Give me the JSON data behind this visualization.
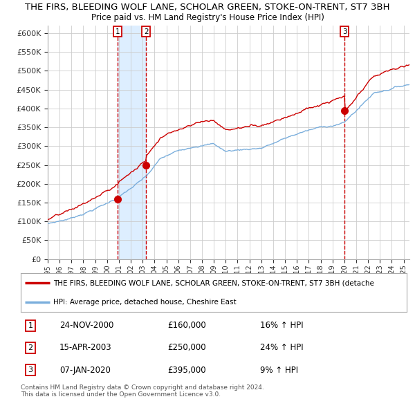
{
  "title": "THE FIRS, BLEEDING WOLF LANE, SCHOLAR GREEN, STOKE-ON-TRENT, ST7 3BH",
  "subtitle": "Price paid vs. HM Land Registry's House Price Index (HPI)",
  "ylim": [
    0,
    620000
  ],
  "yticks": [
    0,
    50000,
    100000,
    150000,
    200000,
    250000,
    300000,
    350000,
    400000,
    450000,
    500000,
    550000,
    600000
  ],
  "ytick_labels": [
    "£0",
    "£50K",
    "£100K",
    "£150K",
    "£200K",
    "£250K",
    "£300K",
    "£350K",
    "£400K",
    "£450K",
    "£500K",
    "£550K",
    "£600K"
  ],
  "sale_prices": [
    160000,
    250000,
    395000
  ],
  "sale_labels": [
    "1",
    "2",
    "3"
  ],
  "red_line_color": "#cc0000",
  "blue_line_color": "#7aaedc",
  "shade_color": "#ddeeff",
  "vline_color": "#cc0000",
  "grid_color": "#cccccc",
  "background_color": "#ffffff",
  "legend_line1": "THE FIRS, BLEEDING WOLF LANE, SCHOLAR GREEN, STOKE-ON-TRENT, ST7 3BH (detache",
  "legend_line2": "HPI: Average price, detached house, Cheshire East",
  "table_rows": [
    {
      "num": "1",
      "date": "24-NOV-2000",
      "price": "£160,000",
      "pct": "16% ↑ HPI"
    },
    {
      "num": "2",
      "date": "15-APR-2003",
      "price": "£250,000",
      "pct": "24% ↑ HPI"
    },
    {
      "num": "3",
      "date": "07-JAN-2020",
      "price": "£395,000",
      "pct": "9% ↑ HPI"
    }
  ],
  "footnote1": "Contains HM Land Registry data © Crown copyright and database right 2024.",
  "footnote2": "This data is licensed under the Open Government Licence v3.0.",
  "xstart": 1995.2,
  "xend": 2025.5
}
